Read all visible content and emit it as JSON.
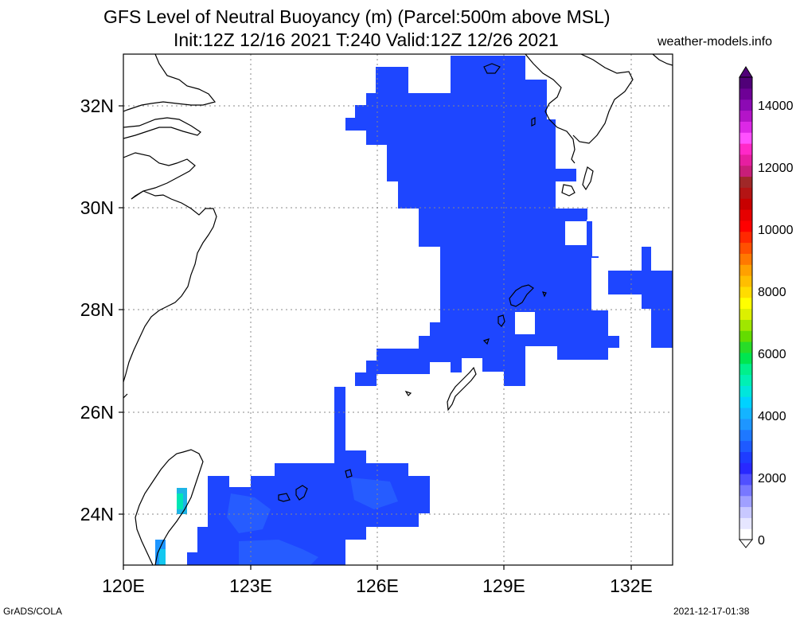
{
  "header": {
    "title_line1": "GFS Level of Neutral Buoyancy (m) (Parcel:500m above MSL)",
    "title_line2": "Init:12Z 12/16 2021 T:240 Valid:12Z 12/26 2021",
    "site": "weather-models.info"
  },
  "footer": {
    "left": "GrADS/COLA",
    "right": "2021-12-17-01:38"
  },
  "map": {
    "lon_range": [
      120,
      133
    ],
    "lat_range": [
      23,
      33
    ],
    "x_ticks": [
      "120E",
      "123E",
      "126E",
      "129E",
      "132E"
    ],
    "y_ticks": [
      "24N",
      "26N",
      "28N",
      "30N",
      "32N"
    ],
    "fill_color": "#1e46ff",
    "fill_color_light": "#2a64ff"
  },
  "colorbar": {
    "labels": [
      "0",
      "2000",
      "4000",
      "6000",
      "8000",
      "10000",
      "12000",
      "14000"
    ],
    "colors": [
      "#ffffff",
      "#e6e6ff",
      "#c8c8ff",
      "#a0a0ff",
      "#7878ff",
      "#5050ff",
      "#2828ff",
      "#1e3cff",
      "#1e5aff",
      "#1e78ff",
      "#1e96ff",
      "#14b4ff",
      "#00d2ff",
      "#00e6dc",
      "#00f0b4",
      "#00f08c",
      "#00e650",
      "#28dc28",
      "#64dc00",
      "#a0e600",
      "#dcf000",
      "#ffff00",
      "#ffdc00",
      "#ffbe00",
      "#ffa000",
      "#ff7800",
      "#ff5000",
      "#ff2800",
      "#ff0000",
      "#e60000",
      "#c80000",
      "#b41414",
      "#a02828",
      "#c81e78",
      "#e61ea0",
      "#ff28c8",
      "#ff50ff",
      "#dc28e6",
      "#b414c8",
      "#8c0ab4",
      "#6e0096",
      "#500078"
    ]
  }
}
